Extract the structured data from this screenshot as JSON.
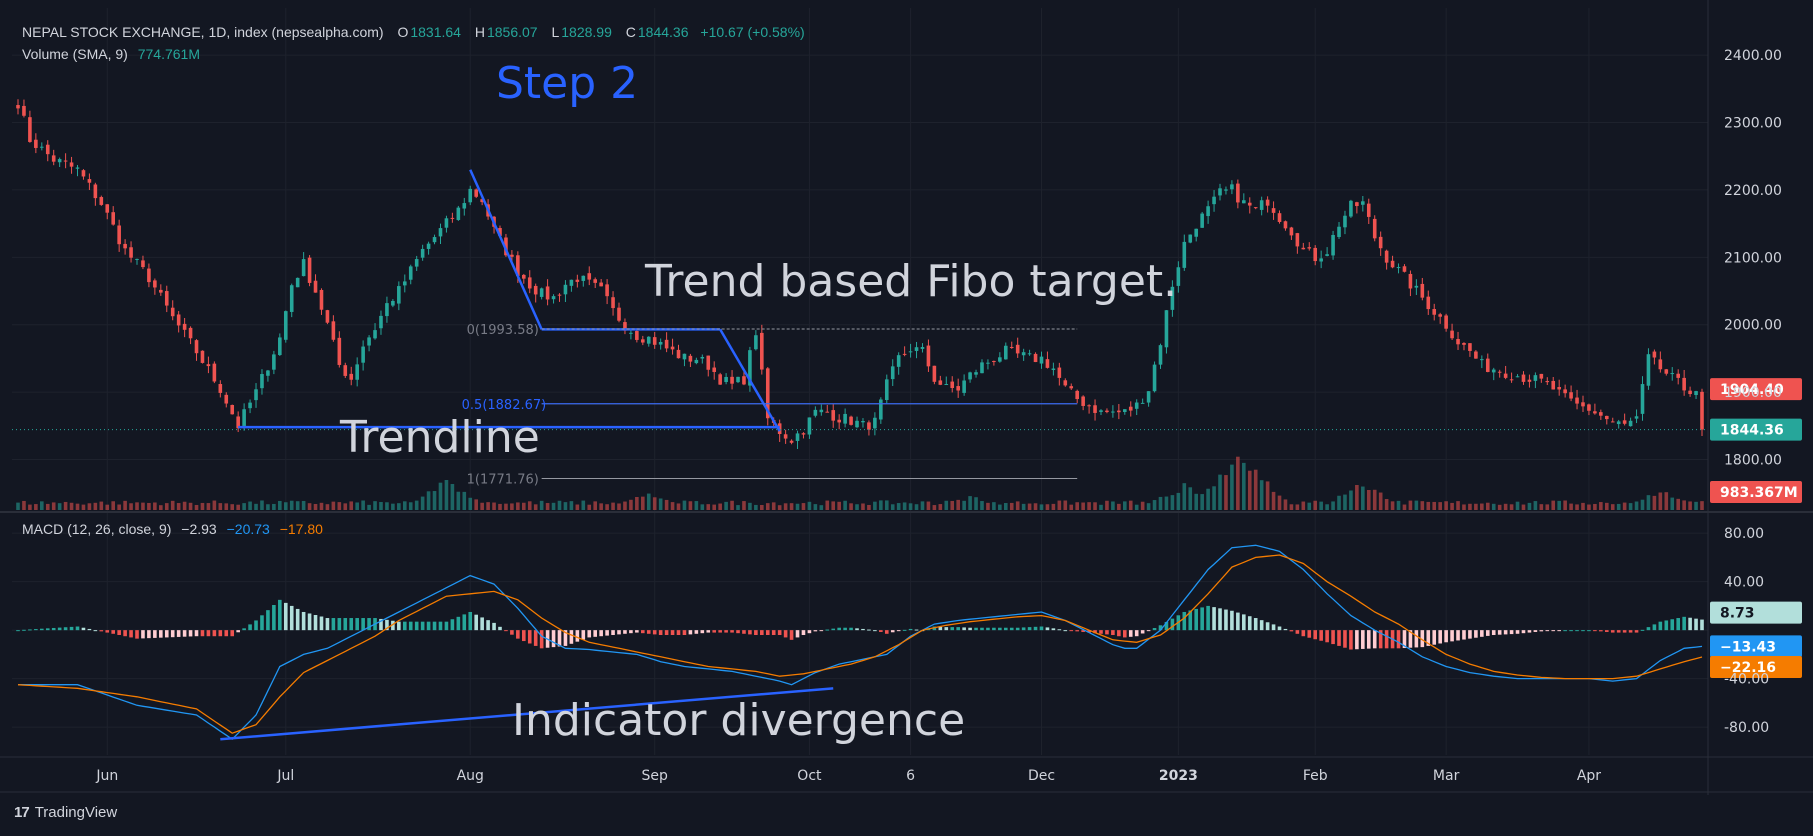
{
  "header": {
    "symbol": "NEPAL STOCK EXCHANGE, 1D, index (nepsealpha.com)",
    "o_label": "O",
    "o": "1831.64",
    "h_label": "H",
    "h": "1856.07",
    "l_label": "L",
    "l": "1828.99",
    "c_label": "C",
    "c": "1844.36",
    "change": "+10.67 (+0.58%)",
    "volume_label": "Volume (SMA, 9)",
    "volume_value": "774.761M",
    "macd_label": "MACD (12, 26, close, 9)",
    "macd_hist": "−2.93",
    "macd_line": "−20.73",
    "macd_signal": "−17.80"
  },
  "footer": {
    "brand": "TradingView",
    "logo": "17"
  },
  "colors": {
    "background": "#131722",
    "grid": "#1e222d",
    "text": "#d1d4dc",
    "up": "#26a69a",
    "down": "#ef5350",
    "macd": "#2196f3",
    "signal": "#f57c00",
    "annotation": "#2962ff"
  },
  "chart_data": [
    {
      "type": "candlestick",
      "title": "NEPAL STOCK EXCHANGE, 1D",
      "ylim": [
        1725,
        2470
      ],
      "y_ticks": [
        "2400.00",
        "2300.00",
        "2200.00",
        "2100.00",
        "2000.00",
        "1900.00",
        "1800.00"
      ],
      "y_tick_values": [
        2400,
        2300,
        2200,
        2100,
        2000,
        1900,
        1800
      ],
      "x_labels": [
        "Jun",
        "Jul",
        "Aug",
        "Sep",
        "Oct",
        "6",
        "Dec",
        "2023",
        "Feb",
        "Mar",
        "Apr"
      ],
      "x_label_index": [
        15,
        45,
        76,
        107,
        133,
        150,
        172,
        195,
        218,
        240,
        264
      ],
      "anchors": [
        [
          0,
          2330
        ],
        [
          2,
          2275
        ],
        [
          6,
          2245
        ],
        [
          10,
          2230
        ],
        [
          14,
          2180
        ],
        [
          18,
          2110
        ],
        [
          22,
          2070
        ],
        [
          26,
          2010
        ],
        [
          30,
          1960
        ],
        [
          34,
          1905
        ],
        [
          37,
          1850
        ],
        [
          40,
          1900
        ],
        [
          42,
          1940
        ],
        [
          44,
          1980
        ],
        [
          46,
          2060
        ],
        [
          48,
          2090
        ],
        [
          50,
          2050
        ],
        [
          52,
          2000
        ],
        [
          54,
          1940
        ],
        [
          56,
          1920
        ],
        [
          58,
          1970
        ],
        [
          60,
          1995
        ],
        [
          62,
          2030
        ],
        [
          64,
          2050
        ],
        [
          66,
          2080
        ],
        [
          68,
          2110
        ],
        [
          70,
          2130
        ],
        [
          72,
          2150
        ],
        [
          74,
          2170
        ],
        [
          76,
          2200
        ],
        [
          78,
          2185
        ],
        [
          80,
          2140
        ],
        [
          82,
          2110
        ],
        [
          84,
          2080
        ],
        [
          86,
          2060
        ],
        [
          88,
          2045
        ],
        [
          90,
          2040
        ],
        [
          92,
          2060
        ],
        [
          94,
          2070
        ],
        [
          96,
          2060
        ],
        [
          98,
          2050
        ],
        [
          100,
          2020
        ],
        [
          102,
          2000
        ],
        [
          104,
          1985
        ],
        [
          106,
          1980
        ],
        [
          108,
          1970
        ],
        [
          110,
          1960
        ],
        [
          112,
          1950
        ],
        [
          114,
          1950
        ],
        [
          116,
          1940
        ],
        [
          118,
          1920
        ],
        [
          120,
          1910
        ],
        [
          122,
          1920
        ],
        [
          124,
          1990
        ],
        [
          126,
          1860
        ],
        [
          128,
          1842
        ],
        [
          130,
          1830
        ],
        [
          132,
          1845
        ],
        [
          134,
          1870
        ],
        [
          136,
          1870
        ],
        [
          138,
          1862
        ],
        [
          140,
          1858
        ],
        [
          142,
          1850
        ],
        [
          144,
          1855
        ],
        [
          146,
          1910
        ],
        [
          148,
          1950
        ],
        [
          150,
          1965
        ],
        [
          152,
          1960
        ],
        [
          154,
          1920
        ],
        [
          156,
          1905
        ],
        [
          158,
          1905
        ],
        [
          160,
          1925
        ],
        [
          162,
          1940
        ],
        [
          164,
          1950
        ],
        [
          166,
          1960
        ],
        [
          168,
          1955
        ],
        [
          170,
          1950
        ],
        [
          172,
          1950
        ],
        [
          174,
          1935
        ],
        [
          176,
          1905
        ],
        [
          178,
          1890
        ],
        [
          180,
          1880
        ],
        [
          182,
          1870
        ],
        [
          184,
          1870
        ],
        [
          186,
          1870
        ],
        [
          188,
          1880
        ],
        [
          190,
          1905
        ],
        [
          192,
          1975
        ],
        [
          194,
          2060
        ],
        [
          196,
          2120
        ],
        [
          198,
          2150
        ],
        [
          200,
          2170
        ],
        [
          202,
          2195
        ],
        [
          204,
          2200
        ],
        [
          206,
          2180
        ],
        [
          208,
          2170
        ],
        [
          210,
          2185
        ],
        [
          212,
          2160
        ],
        [
          214,
          2140
        ],
        [
          216,
          2110
        ],
        [
          218,
          2100
        ],
        [
          220,
          2110
        ],
        [
          222,
          2150
        ],
        [
          224,
          2175
        ],
        [
          226,
          2180
        ],
        [
          228,
          2130
        ],
        [
          230,
          2100
        ],
        [
          232,
          2080
        ],
        [
          234,
          2060
        ],
        [
          236,
          2040
        ],
        [
          238,
          2020
        ],
        [
          240,
          2000
        ],
        [
          242,
          1975
        ],
        [
          244,
          1960
        ],
        [
          246,
          1940
        ],
        [
          248,
          1935
        ],
        [
          250,
          1930
        ],
        [
          252,
          1925
        ],
        [
          254,
          1920
        ],
        [
          256,
          1915
        ],
        [
          258,
          1905
        ],
        [
          260,
          1890
        ],
        [
          262,
          1880
        ],
        [
          264,
          1875
        ],
        [
          266,
          1865
        ],
        [
          268,
          1855
        ],
        [
          270,
          1850
        ],
        [
          272,
          1860
        ],
        [
          274,
          1950
        ],
        [
          276,
          1935
        ],
        [
          278,
          1920
        ],
        [
          280,
          1905
        ],
        [
          283,
          1904
        ]
      ],
      "last_price": 1904.4,
      "last_price_label": "1904.40",
      "close_label": "1844.36",
      "close_price": 1844.36
    },
    {
      "type": "bar",
      "title": "Volume (SMA, 9)",
      "last_value_label": "983.367M",
      "peaks": [
        [
          72,
          0.55
        ],
        [
          106,
          0.3
        ],
        [
          160,
          0.25
        ],
        [
          196,
          0.45
        ],
        [
          205,
          0.95
        ],
        [
          207,
          0.85
        ],
        [
          226,
          0.5
        ],
        [
          276,
          0.35
        ]
      ]
    },
    {
      "type": "line",
      "title": "MACD (12, 26, close, 9)",
      "ylim": [
        -103,
        95
      ],
      "y_ticks": [
        "80.00",
        "40.00",
        "-40.00",
        "-80.00"
      ],
      "y_tick_values": [
        80,
        40,
        -40,
        -80
      ],
      "series": [
        {
          "name": "MACD",
          "anchors": [
            [
              0,
              -45
            ],
            [
              10,
              -45
            ],
            [
              20,
              -62
            ],
            [
              30,
              -70
            ],
            [
              36,
              -90
            ],
            [
              40,
              -70
            ],
            [
              44,
              -30
            ],
            [
              48,
              -20
            ],
            [
              52,
              -15
            ],
            [
              56,
              -5
            ],
            [
              60,
              5
            ],
            [
              64,
              15
            ],
            [
              68,
              25
            ],
            [
              72,
              35
            ],
            [
              76,
              45
            ],
            [
              80,
              38
            ],
            [
              84,
              18
            ],
            [
              88,
              -5
            ],
            [
              92,
              -15
            ],
            [
              96,
              -16
            ],
            [
              100,
              -18
            ],
            [
              104,
              -20
            ],
            [
              108,
              -26
            ],
            [
              112,
              -30
            ],
            [
              116,
              -32
            ],
            [
              120,
              -34
            ],
            [
              124,
              -38
            ],
            [
              128,
              -42
            ],
            [
              130,
              -45
            ],
            [
              134,
              -35
            ],
            [
              138,
              -28
            ],
            [
              142,
              -24
            ],
            [
              146,
              -20
            ],
            [
              150,
              -5
            ],
            [
              154,
              5
            ],
            [
              158,
              8
            ],
            [
              162,
              10
            ],
            [
              166,
              12
            ],
            [
              170,
              14
            ],
            [
              172,
              15
            ],
            [
              176,
              8
            ],
            [
              180,
              -2
            ],
            [
              184,
              -12
            ],
            [
              186,
              -15
            ],
            [
              188,
              -15
            ],
            [
              192,
              0
            ],
            [
              196,
              25
            ],
            [
              200,
              50
            ],
            [
              204,
              68
            ],
            [
              208,
              70
            ],
            [
              212,
              65
            ],
            [
              216,
              50
            ],
            [
              220,
              30
            ],
            [
              224,
              12
            ],
            [
              228,
              0
            ],
            [
              232,
              -10
            ],
            [
              236,
              -22
            ],
            [
              240,
              -30
            ],
            [
              244,
              -35
            ],
            [
              248,
              -38
            ],
            [
              252,
              -40
            ],
            [
              256,
              -40
            ],
            [
              260,
              -40
            ],
            [
              264,
              -40
            ],
            [
              268,
              -42
            ],
            [
              272,
              -40
            ],
            [
              276,
              -25
            ],
            [
              280,
              -15
            ],
            [
              283,
              -13.43
            ]
          ]
        },
        {
          "name": "Signal",
          "anchors": [
            [
              0,
              -45
            ],
            [
              10,
              -48
            ],
            [
              20,
              -55
            ],
            [
              30,
              -65
            ],
            [
              36,
              -85
            ],
            [
              40,
              -78
            ],
            [
              44,
              -55
            ],
            [
              48,
              -35
            ],
            [
              52,
              -25
            ],
            [
              56,
              -15
            ],
            [
              60,
              -5
            ],
            [
              64,
              8
            ],
            [
              68,
              18
            ],
            [
              72,
              28
            ],
            [
              76,
              30
            ],
            [
              80,
              32
            ],
            [
              84,
              25
            ],
            [
              88,
              10
            ],
            [
              92,
              -2
            ],
            [
              96,
              -10
            ],
            [
              100,
              -14
            ],
            [
              104,
              -18
            ],
            [
              108,
              -22
            ],
            [
              112,
              -26
            ],
            [
              116,
              -30
            ],
            [
              120,
              -32
            ],
            [
              124,
              -34
            ],
            [
              128,
              -38
            ],
            [
              132,
              -36
            ],
            [
              136,
              -32
            ],
            [
              140,
              -28
            ],
            [
              144,
              -22
            ],
            [
              148,
              -12
            ],
            [
              152,
              0
            ],
            [
              156,
              4
            ],
            [
              160,
              7
            ],
            [
              164,
              9
            ],
            [
              168,
              11
            ],
            [
              172,
              12
            ],
            [
              176,
              8
            ],
            [
              180,
              0
            ],
            [
              184,
              -8
            ],
            [
              188,
              -10
            ],
            [
              192,
              -4
            ],
            [
              196,
              10
            ],
            [
              200,
              30
            ],
            [
              204,
              52
            ],
            [
              208,
              60
            ],
            [
              212,
              62
            ],
            [
              216,
              55
            ],
            [
              220,
              40
            ],
            [
              224,
              28
            ],
            [
              228,
              15
            ],
            [
              232,
              5
            ],
            [
              236,
              -8
            ],
            [
              240,
              -20
            ],
            [
              244,
              -28
            ],
            [
              248,
              -34
            ],
            [
              252,
              -37
            ],
            [
              256,
              -39
            ],
            [
              260,
              -40
            ],
            [
              264,
              -40
            ],
            [
              268,
              -40
            ],
            [
              272,
              -38
            ],
            [
              276,
              -32
            ],
            [
              280,
              -26
            ],
            [
              283,
              -22.16
            ]
          ]
        }
      ],
      "hist_last_label": "8.73",
      "macd_last_label": "−13.43",
      "signal_last_label": "−22.16"
    }
  ],
  "annotations": {
    "step": "Step 2",
    "fibo_title": "Trend based Fibo target.",
    "fib_0": "0(1993.58)",
    "fib_05": "0.5(1882.67)",
    "fib_1": "1(1771.76)",
    "trendline": "Trendline",
    "divergence": "Indicator divergence"
  }
}
